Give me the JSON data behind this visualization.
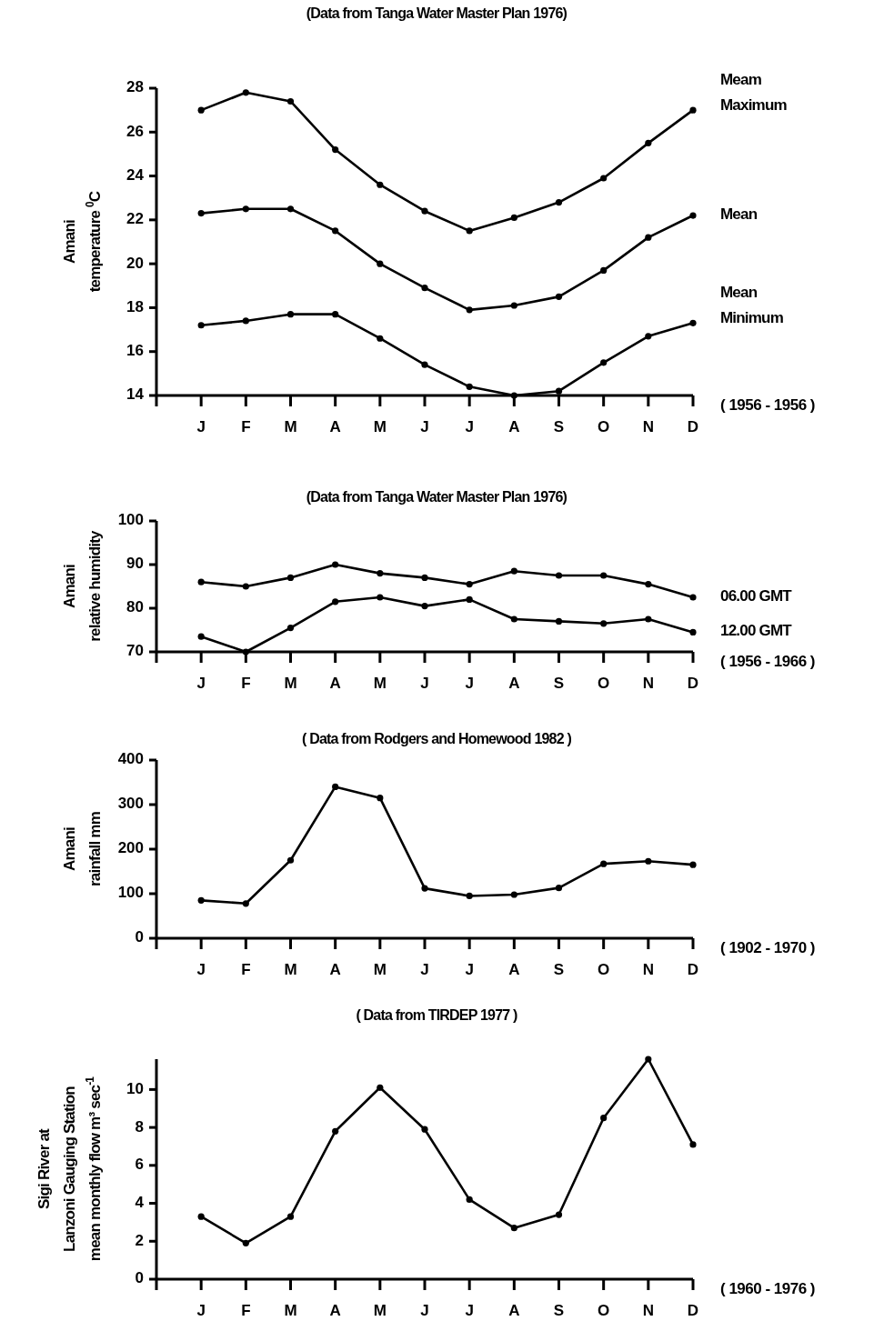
{
  "chart_data": [
    {
      "type": "line",
      "title": "(Data from Tanga Water Master Plan 1976)",
      "ylabel": "Amani\ntemperature $^{0}$C",
      "categories": [
        null,
        "J",
        "F",
        "M",
        "A",
        "M",
        "J",
        "J",
        "A",
        "S",
        "O",
        "N",
        "D"
      ],
      "ylim": [
        14,
        28
      ],
      "yticks": [
        14,
        16,
        18,
        20,
        22,
        24,
        26,
        28
      ],
      "marker": "circle",
      "line_style": "solid",
      "grid": false,
      "annotations": [
        "( 1956 - 1956 )"
      ],
      "series": [
        {
          "name": "Meam\nMaximum",
          "color": "#000000",
          "values": [
            null,
            27.0,
            27.8,
            27.4,
            25.2,
            23.6,
            22.4,
            21.5,
            22.1,
            22.8,
            23.9,
            25.5,
            27.0
          ]
        },
        {
          "name": "Mean",
          "color": "#000000",
          "values": [
            null,
            22.3,
            22.5,
            22.5,
            21.5,
            20.0,
            18.9,
            17.9,
            18.1,
            18.5,
            19.7,
            21.2,
            22.2
          ]
        },
        {
          "name": "Mean\nMinimum",
          "color": "#000000",
          "values": [
            null,
            17.2,
            17.4,
            17.7,
            17.7,
            16.6,
            15.4,
            14.4,
            14.0,
            14.2,
            15.5,
            16.7,
            17.3
          ]
        }
      ]
    },
    {
      "type": "line",
      "title": "(Data from Tanga Water Master Plan 1976)",
      "ylabel": "Amani\nrelative humidity",
      "categories": [
        null,
        "J",
        "F",
        "M",
        "A",
        "M",
        "J",
        "J",
        "A",
        "S",
        "O",
        "N",
        "D"
      ],
      "ylim": [
        70,
        100
      ],
      "yticks": [
        70,
        80,
        90,
        100
      ],
      "marker": "circle",
      "line_style": "solid",
      "grid": false,
      "annotations": [
        "( 1956 - 1966 )"
      ],
      "series": [
        {
          "name": "06.00 GMT",
          "color": "#000000",
          "values": [
            null,
            86,
            85,
            87,
            90,
            88,
            87,
            85.5,
            88.5,
            87.5,
            87.5,
            85.5,
            82.5
          ]
        },
        {
          "name": "12.00 GMT",
          "color": "#000000",
          "values": [
            null,
            73.5,
            70,
            75.5,
            81.5,
            82.5,
            80.5,
            82,
            77.5,
            77,
            76.5,
            77.5,
            74.5
          ]
        }
      ]
    },
    {
      "type": "line",
      "title": "( Data from Rodgers and Homewood 1982 )",
      "ylabel": "Amani\nrainfall  mm",
      "categories": [
        null,
        "J",
        "F",
        "M",
        "A",
        "M",
        "J",
        "J",
        "A",
        "S",
        "O",
        "N",
        "D"
      ],
      "ylim": [
        0,
        400
      ],
      "yticks": [
        0,
        100,
        200,
        300,
        400
      ],
      "marker": "circle",
      "line_style": "solid",
      "grid": false,
      "annotations": [
        "( 1902 - 1970 )"
      ],
      "series": [
        {
          "color": "#000000",
          "values": [
            null,
            85,
            78,
            175,
            340,
            315,
            112,
            95,
            98,
            113,
            167,
            173,
            165
          ]
        }
      ]
    },
    {
      "type": "line",
      "title": "( Data from TIRDEP 1977 )",
      "ylabel": "Sigi River at\nLanzoni Gauging Station\nmean monthly flow m³ sec$^{-1}$",
      "categories": [
        null,
        "J",
        "F",
        "M",
        "A",
        "M",
        "J",
        "J",
        "A",
        "S",
        "O",
        "N",
        "D"
      ],
      "ylim": [
        0,
        11.6
      ],
      "yticks": [
        0,
        2,
        4,
        6,
        8,
        10
      ],
      "marker": "circle",
      "line_style": "solid",
      "grid": false,
      "annotations": [
        "( 1960 - 1976 )"
      ],
      "series": [
        {
          "color": "#000000",
          "values": [
            null,
            3.3,
            1.9,
            3.3,
            7.8,
            10.1,
            7.9,
            4.2,
            2.7,
            3.4,
            8.5,
            11.6,
            7.1
          ]
        }
      ]
    }
  ]
}
